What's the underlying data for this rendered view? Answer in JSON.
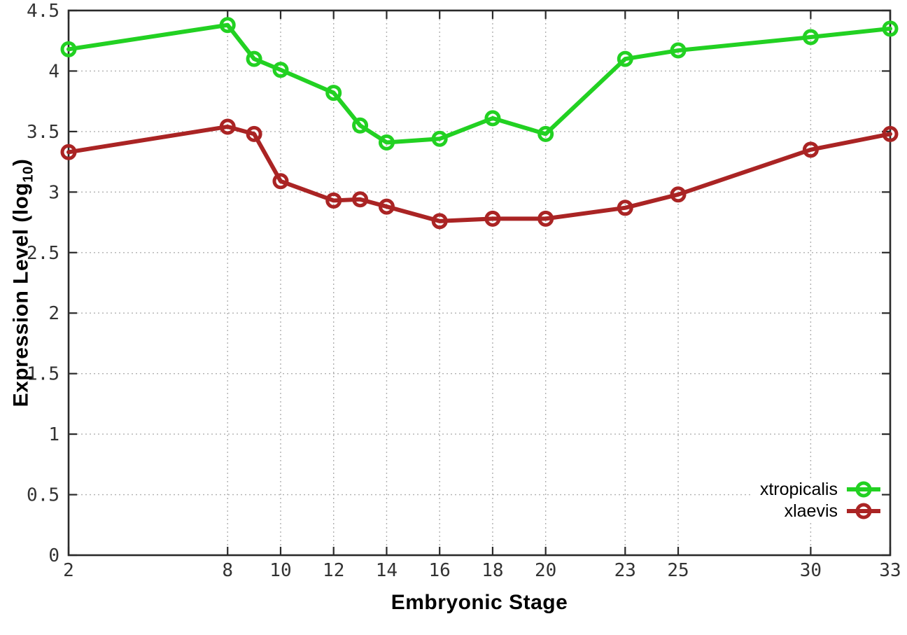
{
  "chart_data": {
    "type": "line",
    "title": "",
    "xlabel": "Embryonic Stage",
    "ylabel": "Expression Level (log10)",
    "ylabel_pre": "Expression Level (log",
    "ylabel_sub": "10",
    "ylabel_post": ")",
    "xlim": [
      2,
      33
    ],
    "ylim": [
      0,
      4.5
    ],
    "grid": true,
    "legend_position": "inside-bottom-right",
    "x": [
      2,
      8,
      9,
      10,
      12,
      13,
      14,
      16,
      18,
      20,
      23,
      25,
      30,
      33
    ],
    "xtick_values": [
      2,
      8,
      10,
      12,
      14,
      16,
      18,
      20,
      23,
      25,
      30,
      33
    ],
    "xtick_labels": [
      "2",
      "8",
      "10",
      "12",
      "14",
      "16",
      "18",
      "20",
      "23",
      "25",
      "30",
      "33"
    ],
    "ytick_values": [
      0,
      0.5,
      1,
      1.5,
      2,
      2.5,
      3,
      3.5,
      4,
      4.5
    ],
    "ytick_labels": [
      "0",
      "0.5",
      "1",
      "1.5",
      "2",
      "2.5",
      "3",
      "3.5",
      "4",
      "4.5"
    ],
    "series": [
      {
        "name": "xtropicalis",
        "color": "#22d122",
        "values": [
          4.18,
          4.38,
          4.1,
          4.01,
          3.82,
          3.55,
          3.41,
          3.44,
          3.61,
          3.48,
          4.1,
          4.17,
          4.28,
          4.35
        ]
      },
      {
        "name": "xlaevis",
        "color": "#aa2424",
        "values": [
          3.33,
          3.54,
          3.48,
          3.09,
          2.93,
          2.94,
          2.88,
          2.76,
          2.78,
          2.78,
          2.87,
          2.98,
          3.35,
          3.48
        ]
      }
    ],
    "style": {
      "axis_color": "#2a2a2a",
      "grid_color": "#b0b0b0",
      "tick_text_color": "#333333",
      "marker": "open-circle"
    }
  }
}
